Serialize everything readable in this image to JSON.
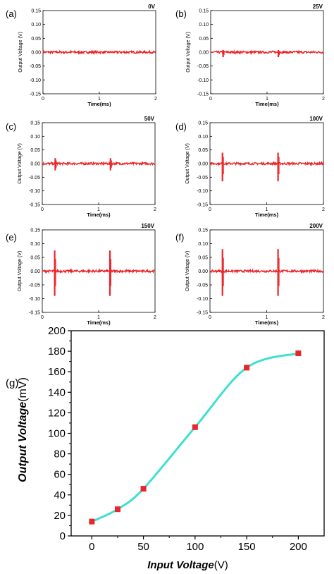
{
  "chart_data": [
    {
      "type": "line",
      "panel_label": "(a)",
      "voltage_tag": "0V",
      "xlabel": "Time(ms)",
      "ylabel": "Output Voltage (V)",
      "xlim": [
        0,
        2
      ],
      "ylim": [
        -0.15,
        0.15
      ],
      "x_ticks": [
        "0",
        "1",
        "2"
      ],
      "y_ticks": [
        "0.15",
        "0.10",
        "0.05",
        "0.00",
        "-0.05",
        "-0.10",
        "-0.15"
      ],
      "baseline": 0.0,
      "noise": 0.004,
      "color": "#e8262b",
      "spikes": []
    },
    {
      "type": "line",
      "panel_label": "(b)",
      "voltage_tag": "25V",
      "xlabel": "Time(ms)",
      "ylabel": "Output Voltage (V)",
      "xlim": [
        0,
        2
      ],
      "ylim": [
        -0.15,
        0.15
      ],
      "x_ticks": [
        "0",
        "1",
        "2"
      ],
      "y_ticks": [
        "0.15",
        "0.10",
        "0.05",
        "0.00",
        "-0.05",
        "-0.10",
        "-0.15"
      ],
      "baseline": 0.0,
      "noise": 0.004,
      "color": "#e8262b",
      "spikes": [
        {
          "t": 0.22,
          "max": 0.008,
          "min": -0.018
        },
        {
          "t": 1.2,
          "max": 0.008,
          "min": -0.018
        }
      ]
    },
    {
      "type": "line",
      "panel_label": "(c)",
      "voltage_tag": "50V",
      "xlabel": "Time(ms)",
      "ylabel": "Output Voltage (V)",
      "xlim": [
        0,
        2
      ],
      "ylim": [
        -0.15,
        0.15
      ],
      "x_ticks": [
        "0",
        "1",
        "2"
      ],
      "y_ticks": [
        "0.15",
        "0.10",
        "0.05",
        "0.00",
        "-0.05",
        "-0.10",
        "-0.15"
      ],
      "baseline": 0.0,
      "noise": 0.004,
      "color": "#e8262b",
      "spikes": [
        {
          "t": 0.23,
          "max": 0.02,
          "min": -0.025
        },
        {
          "t": 1.21,
          "max": 0.02,
          "min": -0.025
        }
      ]
    },
    {
      "type": "line",
      "panel_label": "(d)",
      "voltage_tag": "100V",
      "xlabel": "Time(ms)",
      "ylabel": "Output Voltage (V)",
      "xlim": [
        0,
        2
      ],
      "ylim": [
        -0.15,
        0.15
      ],
      "x_ticks": [
        "0",
        "1",
        "2"
      ],
      "y_ticks": [
        "0.15",
        "0.10",
        "0.05",
        "0.00",
        "-0.05",
        "-0.10",
        "-0.15"
      ],
      "baseline": 0.0,
      "noise": 0.004,
      "color": "#e8262b",
      "spikes": [
        {
          "t": 0.22,
          "max": 0.04,
          "min": -0.065
        },
        {
          "t": 1.2,
          "max": 0.04,
          "min": -0.065
        }
      ]
    },
    {
      "type": "line",
      "panel_label": "(e)",
      "voltage_tag": "150V",
      "xlabel": "Time(ms)",
      "ylabel": "Output Voltage (V)",
      "xlim": [
        0,
        2
      ],
      "ylim": [
        -0.15,
        0.15
      ],
      "x_ticks": [
        "0",
        "1",
        "2"
      ],
      "y_ticks": [
        "0.15",
        "0.10",
        "0.05",
        "0.00",
        "-0.05",
        "-0.10",
        "-0.15"
      ],
      "baseline": 0.0,
      "noise": 0.004,
      "color": "#e8262b",
      "spikes": [
        {
          "t": 0.22,
          "max": 0.075,
          "min": -0.09
        },
        {
          "t": 1.2,
          "max": 0.075,
          "min": -0.09
        }
      ]
    },
    {
      "type": "line",
      "panel_label": "(f)",
      "voltage_tag": "200V",
      "xlabel": "Time(ms)",
      "ylabel": "Output Voltage (V)",
      "xlim": [
        0,
        2
      ],
      "ylim": [
        -0.15,
        0.15
      ],
      "x_ticks": [
        "0",
        "1",
        "2"
      ],
      "y_ticks": [
        "0.15",
        "0.10",
        "0.05",
        "0.00",
        "-0.05",
        "-0.10",
        "-0.15"
      ],
      "baseline": 0.0,
      "noise": 0.004,
      "color": "#e8262b",
      "spikes": [
        {
          "t": 0.22,
          "max": 0.08,
          "min": -0.09
        },
        {
          "t": 1.2,
          "max": 0.08,
          "min": -0.09
        }
      ]
    },
    {
      "type": "line",
      "panel_label": "(g)",
      "xlabel_italic": "Input Voltage",
      "xlabel_unit": "(V)",
      "ylabel_italic": "Output Voltage",
      "ylabel_unit": "(mV)",
      "x": [
        0,
        25,
        50,
        100,
        150,
        200
      ],
      "y": [
        14,
        26,
        46,
        106,
        164,
        178
      ],
      "xlim": [
        -20,
        225
      ],
      "ylim": [
        0,
        200
      ],
      "x_ticks": [
        0,
        50,
        100,
        150,
        200
      ],
      "y_ticks": [
        0,
        20,
        40,
        60,
        80,
        100,
        120,
        140,
        160,
        180,
        200
      ],
      "line_color": "#3fe0d0",
      "marker_color": "#e8262b",
      "marker": "square",
      "grid": false
    }
  ]
}
